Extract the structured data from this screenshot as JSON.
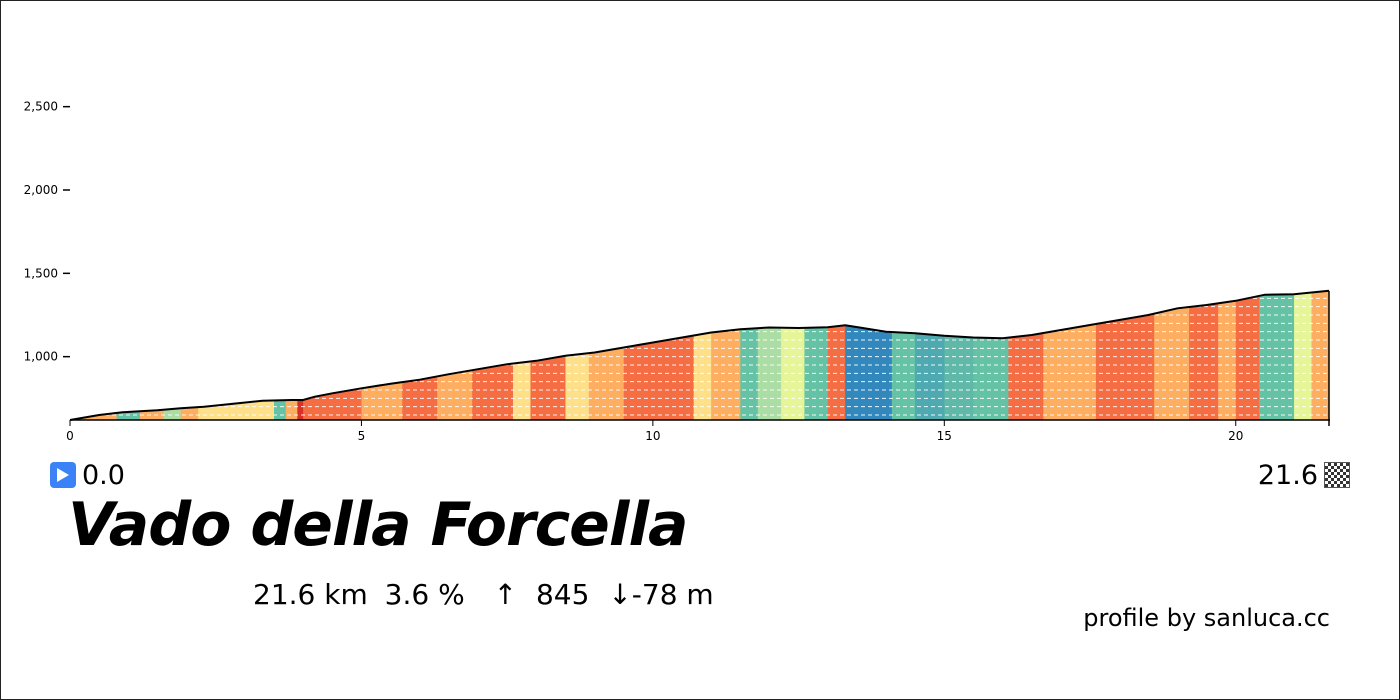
{
  "climb": {
    "name": "Vado della Forcella",
    "start_km": "0.0",
    "end_km": "21.6",
    "distance": "21.6 km",
    "avg_gradient": "3.6 %",
    "ascent_arrow": "↑",
    "ascent": "845",
    "descent_arrow": "↓",
    "descent": "-78 m"
  },
  "credit": "profile by sanluca.cc",
  "icons": {
    "start": "play-icon",
    "finish": "checkered-flag-icon"
  },
  "colors": {
    "play_icon": "#3b82f6",
    "outline": "#000000",
    "grid": "#ffffff"
  },
  "chart_data": {
    "type": "area",
    "title": "",
    "xlabel": "",
    "ylabel": "",
    "xlim": [
      0,
      21.6
    ],
    "ylim": [
      620,
      2900
    ],
    "grid": true,
    "x_ticks": [
      0,
      5,
      10,
      15,
      20
    ],
    "x_tick_labels": [
      "0",
      "5",
      "10",
      "15",
      "20"
    ],
    "y_ticks": [
      1000,
      1500,
      2000,
      2500
    ],
    "y_tick_labels": [
      "1,000",
      "1,500",
      "2,000",
      "2,500"
    ],
    "elevation_profile": {
      "x": [
        0,
        0.5,
        0.9,
        1.2,
        1.5,
        1.9,
        2.3,
        2.8,
        3.3,
        3.8,
        4.0,
        4.2,
        4.5,
        5.0,
        5.5,
        6.0,
        6.5,
        7.0,
        7.5,
        8.0,
        8.5,
        9.0,
        9.5,
        10.0,
        10.5,
        11.0,
        11.5,
        12.0,
        12.5,
        13.0,
        13.3,
        13.6,
        14.0,
        14.5,
        15.0,
        15.5,
        16.0,
        16.5,
        17.0,
        17.5,
        18.0,
        18.5,
        19.0,
        19.5,
        20.0,
        20.5,
        21.0,
        21.6
      ],
      "y": [
        620,
        650,
        666,
        672,
        678,
        690,
        700,
        718,
        735,
        740,
        740,
        760,
        780,
        810,
        838,
        862,
        895,
        925,
        955,
        975,
        1005,
        1025,
        1055,
        1085,
        1115,
        1145,
        1165,
        1175,
        1172,
        1176,
        1188,
        1172,
        1150,
        1140,
        1125,
        1115,
        1110,
        1130,
        1160,
        1190,
        1220,
        1250,
        1290,
        1310,
        1335,
        1372,
        1375,
        1395
      ]
    },
    "gradient_segments": {
      "start_km": [
        0,
        0.8,
        1.2,
        1.6,
        1.9,
        2.2,
        2.8,
        3.5,
        3.7,
        3.9,
        4.0,
        4.3,
        5.0,
        5.7,
        6.3,
        6.9,
        7.6,
        7.9,
        8.5,
        8.9,
        9.5,
        10.2,
        10.7,
        11.0,
        11.5,
        11.8,
        12.2,
        12.6,
        13.0,
        13.3,
        13.6,
        14.1,
        14.5,
        15.0,
        15.5,
        16.1,
        16.7,
        17.6,
        18.6,
        19.2,
        19.7,
        20.0,
        20.4,
        21.0,
        21.3
      ],
      "end_km": [
        0.8,
        1.2,
        1.6,
        1.9,
        2.2,
        2.8,
        3.5,
        3.7,
        3.9,
        4.0,
        4.3,
        5.0,
        5.7,
        6.3,
        6.9,
        7.6,
        7.9,
        8.5,
        8.9,
        9.5,
        10.2,
        10.7,
        11.0,
        11.5,
        11.8,
        12.2,
        12.6,
        13.0,
        13.3,
        13.6,
        14.1,
        14.5,
        15.0,
        15.5,
        16.1,
        16.7,
        17.6,
        18.6,
        19.2,
        19.7,
        20.0,
        20.4,
        21.0,
        21.3,
        21.6
      ],
      "color": [
        "#fdae61",
        "#66c2a5",
        "#fdae61",
        "#abdda4",
        "#fdae61",
        "#fee08b",
        "#fee08b",
        "#66c2a5",
        "#fdae61",
        "#d73027",
        "#f46d43",
        "#f46d43",
        "#fdae61",
        "#f46d43",
        "#fdae61",
        "#f46d43",
        "#fee08b",
        "#f46d43",
        "#fee08b",
        "#fdae61",
        "#f46d43",
        "#f46d43",
        "#fee08b",
        "#fdae61",
        "#66c2a5",
        "#abdda4",
        "#e6f598",
        "#66c2a5",
        "#f46d43",
        "#3288bd",
        "#3288bd",
        "#66c2a5",
        "#4ea9b0",
        "#5fb8a8",
        "#66c2a5",
        "#f46d43",
        "#fdae61",
        "#f46d43",
        "#fdae61",
        "#f46d43",
        "#fdae61",
        "#f46d43",
        "#66c2a5",
        "#e6f598",
        "#fdae61"
      ]
    }
  }
}
